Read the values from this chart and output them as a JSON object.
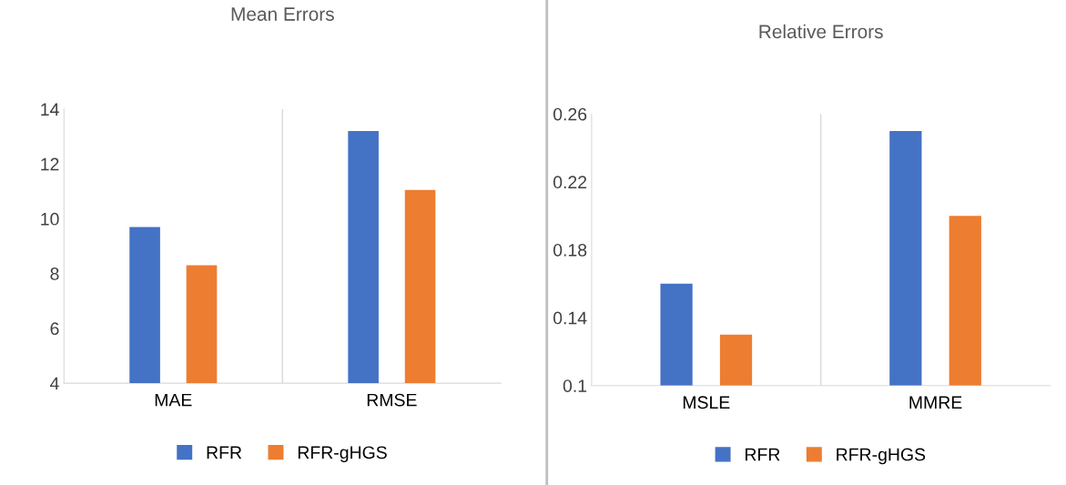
{
  "chart_data": [
    {
      "type": "bar",
      "title": "Mean Errors",
      "categories": [
        "MAE",
        "RMSE"
      ],
      "series": [
        {
          "name": "RFR",
          "color": "#4472c4",
          "values": [
            9.7,
            13.2
          ]
        },
        {
          "name": "RFR-gHGS",
          "color": "#ed7d31",
          "values": [
            8.3,
            11.05
          ]
        }
      ],
      "ylim": [
        4,
        14
      ],
      "yticks": [
        4,
        6,
        8,
        10,
        12,
        14
      ],
      "grid": "x",
      "legend": "bottom"
    },
    {
      "type": "bar",
      "title": "Relative Errors",
      "categories": [
        "MSLE",
        "MMRE"
      ],
      "series": [
        {
          "name": "RFR",
          "color": "#4472c4",
          "values": [
            0.16,
            0.25
          ]
        },
        {
          "name": "RFR-gHGS",
          "color": "#ed7d31",
          "values": [
            0.13,
            0.2
          ]
        }
      ],
      "ylim": [
        0.1,
        0.26
      ],
      "yticks": [
        0.1,
        0.14,
        0.18,
        0.22,
        0.26
      ],
      "grid": "x",
      "legend": "bottom"
    }
  ]
}
